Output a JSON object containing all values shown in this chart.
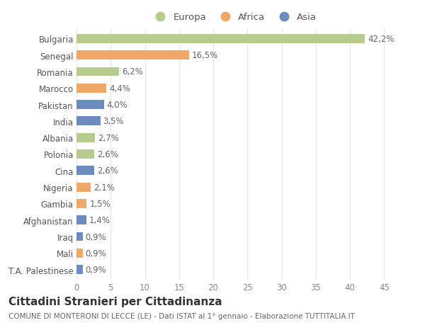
{
  "countries": [
    "Bulgaria",
    "Senegal",
    "Romania",
    "Marocco",
    "Pakistan",
    "India",
    "Albania",
    "Polonia",
    "Cina",
    "Nigeria",
    "Gambia",
    "Afghanistan",
    "Iraq",
    "Mali",
    "T.A. Palestinese"
  ],
  "values": [
    42.2,
    16.5,
    6.2,
    4.4,
    4.0,
    3.5,
    2.7,
    2.6,
    2.6,
    2.1,
    1.5,
    1.4,
    0.9,
    0.9,
    0.9
  ],
  "labels": [
    "42,2%",
    "16,5%",
    "6,2%",
    "4,4%",
    "4,0%",
    "3,5%",
    "2,7%",
    "2,6%",
    "2,6%",
    "2,1%",
    "1,5%",
    "1,4%",
    "0,9%",
    "0,9%",
    "0,9%"
  ],
  "continents": [
    "Europa",
    "Africa",
    "Europa",
    "Africa",
    "Asia",
    "Asia",
    "Europa",
    "Europa",
    "Asia",
    "Africa",
    "Africa",
    "Asia",
    "Asia",
    "Africa",
    "Asia"
  ],
  "colors": {
    "Europa": "#b5cc8e",
    "Africa": "#f0a868",
    "Asia": "#6b8cbf"
  },
  "xlim": [
    0,
    46
  ],
  "xticks": [
    0,
    5,
    10,
    15,
    20,
    25,
    30,
    35,
    40,
    45
  ],
  "background_color": "#ffffff",
  "grid_color": "#e8e8e8",
  "title": "Cittadini Stranieri per Cittadinanza",
  "subtitle": "COMUNE DI MONTERONI DI LECCE (LE) - Dati ISTAT al 1° gennaio - Elaborazione TUTTITALIA.IT",
  "bar_height": 0.55,
  "label_fontsize": 8.5,
  "tick_fontsize": 8.5,
  "title_fontsize": 11,
  "subtitle_fontsize": 7.5
}
